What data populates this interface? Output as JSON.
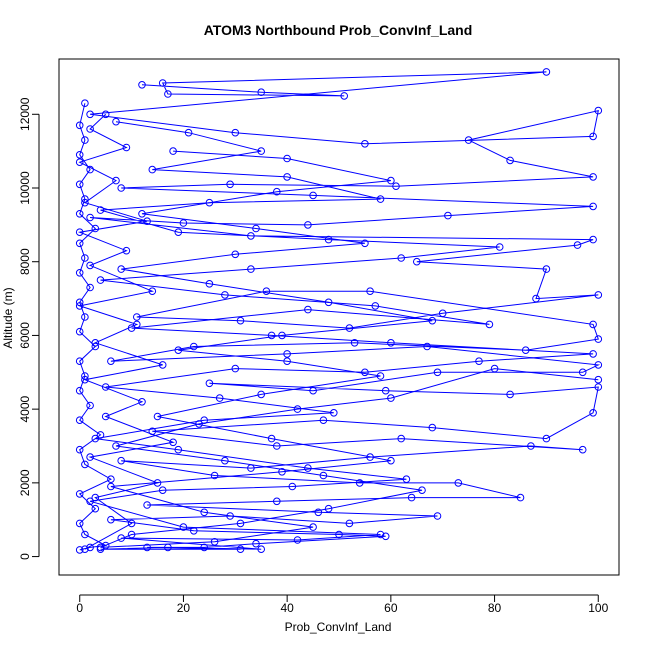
{
  "chart_data": {
    "type": "line",
    "title": "ATOM3 Northbound Prob_ConvInf_Land",
    "xlabel": "Prob_ConvInf_Land",
    "ylabel": "Altitude (m)",
    "xlim": [
      -4,
      104
    ],
    "ylim": [
      -500,
      13500
    ],
    "x_ticks": [
      0,
      20,
      40,
      60,
      80,
      100
    ],
    "x_tick_labels": [
      "0",
      "20",
      "40",
      "60",
      "80",
      "100"
    ],
    "y_ticks": [
      0,
      2000,
      4000,
      6000,
      8000,
      10000,
      12000
    ],
    "y_tick_labels": [
      "0",
      "2000",
      "4000",
      "6000",
      "8000",
      "10000",
      "12000"
    ],
    "grid": false,
    "legend": "none",
    "series_color": "#0000ff",
    "marker": "open-circle",
    "series": [
      {
        "points": [
          [
            0,
            180
          ],
          [
            2,
            250
          ],
          [
            5,
            300
          ],
          [
            1,
            600
          ],
          [
            0,
            900
          ],
          [
            3,
            1300
          ],
          [
            0,
            1700
          ],
          [
            6,
            2100
          ],
          [
            1,
            2500
          ],
          [
            0,
            2900
          ],
          [
            4,
            3300
          ],
          [
            0,
            3700
          ],
          [
            2,
            4100
          ],
          [
            0,
            4500
          ],
          [
            1,
            4900
          ],
          [
            0,
            5300
          ],
          [
            3,
            5700
          ],
          [
            0,
            6100
          ],
          [
            1,
            6500
          ],
          [
            0,
            6900
          ],
          [
            2,
            7300
          ],
          [
            0,
            7700
          ],
          [
            1,
            8100
          ],
          [
            0,
            8500
          ],
          [
            3,
            8900
          ],
          [
            0,
            9300
          ],
          [
            1,
            9700
          ],
          [
            0,
            10100
          ],
          [
            2,
            10500
          ],
          [
            0,
            10900
          ],
          [
            1,
            11300
          ],
          [
            0,
            11700
          ],
          [
            1,
            12300
          ]
        ]
      },
      {
        "points": [
          [
            12,
            12800
          ],
          [
            35,
            12600
          ],
          [
            51,
            12500
          ],
          [
            17,
            12550
          ],
          [
            16,
            12850
          ],
          [
            90,
            13150
          ],
          [
            2,
            12000
          ],
          [
            30,
            11500
          ],
          [
            55,
            11200
          ],
          [
            99,
            11400
          ],
          [
            100,
            12100
          ],
          [
            75,
            11300
          ],
          [
            83,
            10750
          ],
          [
            99,
            10300
          ],
          [
            61,
            10050
          ],
          [
            29,
            10100
          ],
          [
            8,
            10000
          ],
          [
            45,
            9800
          ],
          [
            99,
            9500
          ],
          [
            71,
            9250
          ],
          [
            44,
            9000
          ],
          [
            20,
            9050
          ],
          [
            2,
            9200
          ],
          [
            33,
            8700
          ],
          [
            99,
            8600
          ],
          [
            96,
            8450
          ],
          [
            65,
            8000
          ],
          [
            90,
            7800
          ],
          [
            88,
            7000
          ],
          [
            100,
            7100
          ],
          [
            70,
            6600
          ],
          [
            52,
            6200
          ],
          [
            31,
            6400
          ],
          [
            11,
            6500
          ],
          [
            36,
            7200
          ],
          [
            56,
            7200
          ],
          [
            99,
            6300
          ],
          [
            100,
            5900
          ],
          [
            86,
            5600
          ],
          [
            53,
            5800
          ],
          [
            22,
            5700
          ],
          [
            6,
            5300
          ],
          [
            40,
            5500
          ],
          [
            67,
            5700
          ],
          [
            100,
            5200
          ],
          [
            97,
            5000
          ],
          [
            69,
            5000
          ],
          [
            45,
            4500
          ],
          [
            25,
            4700
          ],
          [
            59,
            4500
          ],
          [
            83,
            4400
          ],
          [
            100,
            4600
          ],
          [
            99,
            3900
          ],
          [
            90,
            3200
          ],
          [
            68,
            3500
          ],
          [
            47,
            3700
          ],
          [
            14,
            3400
          ],
          [
            38,
            3000
          ],
          [
            62,
            3200
          ],
          [
            97,
            2900
          ],
          [
            87,
            3000
          ],
          [
            56,
            2700
          ],
          [
            33,
            2400
          ],
          [
            8,
            2600
          ],
          [
            26,
            2200
          ],
          [
            54,
            2000
          ],
          [
            73,
            2000
          ],
          [
            85,
            1600
          ],
          [
            64,
            1600
          ],
          [
            38,
            1500
          ],
          [
            13,
            1400
          ],
          [
            46,
            1200
          ],
          [
            69,
            1100
          ],
          [
            52,
            900
          ],
          [
            29,
            1100
          ],
          [
            6,
            1000
          ],
          [
            22,
            700
          ],
          [
            50,
            600
          ],
          [
            59,
            550
          ],
          [
            34,
            350
          ],
          [
            24,
            250
          ],
          [
            13,
            250
          ],
          [
            31,
            200
          ],
          [
            4,
            200
          ],
          [
            17,
            250
          ],
          [
            35,
            200
          ],
          [
            8,
            500
          ],
          [
            42,
            450
          ],
          [
            58,
            600
          ],
          [
            20,
            800
          ],
          [
            2,
            1500
          ],
          [
            16,
            1800
          ],
          [
            41,
            1900
          ],
          [
            63,
            2100
          ],
          [
            44,
            2400
          ],
          [
            19,
            2900
          ],
          [
            3,
            3200
          ],
          [
            24,
            3700
          ],
          [
            49,
            3900
          ],
          [
            27,
            4300
          ],
          [
            5,
            4600
          ],
          [
            30,
            5100
          ],
          [
            55,
            5000
          ],
          [
            77,
            5300
          ],
          [
            99,
            5500
          ],
          [
            60,
            5800
          ],
          [
            37,
            6000
          ],
          [
            10,
            6200
          ],
          [
            44,
            6700
          ],
          [
            79,
            6300
          ],
          [
            57,
            6800
          ],
          [
            28,
            7100
          ],
          [
            4,
            7500
          ],
          [
            33,
            7800
          ],
          [
            62,
            8100
          ],
          [
            81,
            8400
          ],
          [
            48,
            8600
          ],
          [
            19,
            8800
          ],
          [
            4,
            9400
          ],
          [
            25,
            9600
          ],
          [
            58,
            9700
          ],
          [
            40,
            10300
          ],
          [
            14,
            10500
          ],
          [
            35,
            11000
          ],
          [
            21,
            11500
          ],
          [
            7,
            11800
          ]
        ]
      },
      {
        "points": [
          [
            1,
            200
          ],
          [
            10,
            900
          ],
          [
            3,
            1600
          ],
          [
            15,
            2000
          ],
          [
            2,
            2700
          ],
          [
            18,
            3100
          ],
          [
            5,
            3800
          ],
          [
            12,
            4200
          ],
          [
            1,
            4800
          ],
          [
            16,
            5200
          ],
          [
            3,
            5800
          ],
          [
            11,
            6300
          ],
          [
            0,
            6800
          ],
          [
            14,
            7200
          ],
          [
            2,
            7900
          ],
          [
            9,
            8300
          ],
          [
            0,
            8800
          ],
          [
            13,
            9100
          ],
          [
            1,
            9600
          ],
          [
            7,
            10200
          ],
          [
            0,
            10700
          ],
          [
            9,
            11100
          ],
          [
            2,
            11600
          ],
          [
            5,
            12000
          ]
        ]
      },
      {
        "points": [
          [
            100,
            4800
          ],
          [
            80,
            5100
          ],
          [
            60,
            4300
          ],
          [
            42,
            4000
          ],
          [
            23,
            3600
          ],
          [
            7,
            3000
          ],
          [
            28,
            2600
          ],
          [
            47,
            2200
          ],
          [
            66,
            1800
          ],
          [
            48,
            1300
          ],
          [
            31,
            900
          ],
          [
            10,
            600
          ],
          [
            4,
            250
          ],
          [
            26,
            400
          ],
          [
            45,
            800
          ],
          [
            24,
            1200
          ],
          [
            6,
            1900
          ],
          [
            39,
            2300
          ],
          [
            60,
            2600
          ],
          [
            37,
            3200
          ],
          [
            15,
            3800
          ],
          [
            35,
            4400
          ],
          [
            58,
            4900
          ],
          [
            40,
            5300
          ],
          [
            19,
            5600
          ],
          [
            39,
            6000
          ],
          [
            68,
            6400
          ],
          [
            48,
            6900
          ],
          [
            25,
            7400
          ],
          [
            8,
            7800
          ],
          [
            30,
            8200
          ],
          [
            55,
            8500
          ],
          [
            34,
            8900
          ],
          [
            12,
            9300
          ],
          [
            38,
            9900
          ],
          [
            60,
            10200
          ],
          [
            40,
            10800
          ],
          [
            18,
            11000
          ]
        ]
      }
    ]
  }
}
